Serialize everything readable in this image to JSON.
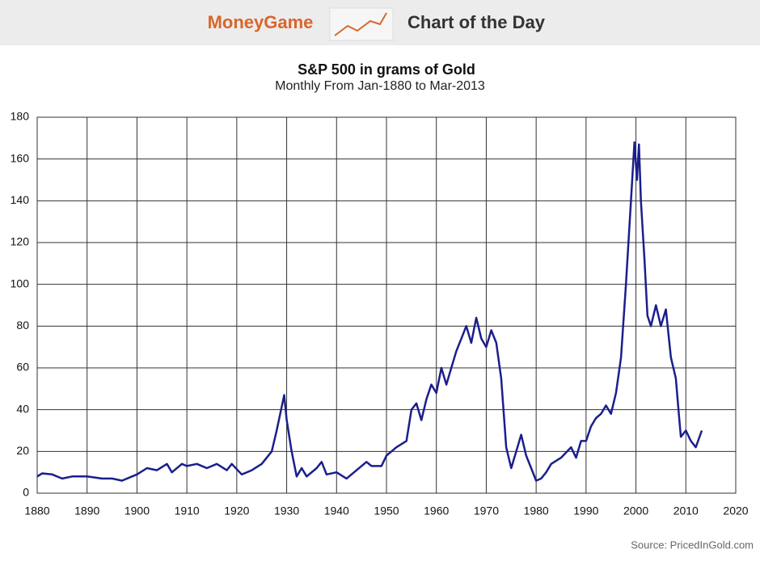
{
  "header": {
    "brand": "MoneyGame",
    "label": "Chart of the Day"
  },
  "chart_data": {
    "type": "line",
    "title": "S&P 500 in grams of Gold",
    "subtitle": "Monthly From Jan-1880 to Mar-2013",
    "source": "Source: PricedInGold.com",
    "x": [
      1880,
      1881,
      1883,
      1885,
      1887,
      1890,
      1893,
      1895,
      1897,
      1899,
      1900,
      1902,
      1904,
      1906,
      1907,
      1909,
      1910,
      1912,
      1914,
      1916,
      1918,
      1919,
      1921,
      1923,
      1925,
      1927,
      1928,
      1929.5,
      1930,
      1931,
      1932,
      1933,
      1934,
      1936,
      1937,
      1938,
      1940,
      1942,
      1944,
      1946,
      1947,
      1949,
      1950,
      1952,
      1954,
      1955,
      1956,
      1957,
      1958,
      1959,
      1960,
      1961,
      1962,
      1963,
      1964,
      1965,
      1966,
      1967,
      1968,
      1969,
      1970,
      1971,
      1972,
      1973,
      1974,
      1975,
      1976,
      1977,
      1978,
      1979,
      1980,
      1981,
      1982,
      1983,
      1985,
      1987,
      1988,
      1989,
      1990,
      1991,
      1992,
      1993,
      1994,
      1995,
      1996,
      1997,
      1998,
      1999,
      1999.7,
      2000.2,
      2000.6,
      2001,
      2001.7,
      2002.3,
      2003,
      2004,
      2005,
      2006,
      2007,
      2008,
      2008.6,
      2009,
      2010,
      2011,
      2012,
      2013.2
    ],
    "values": [
      8,
      9.5,
      9,
      7,
      8,
      8,
      7,
      7,
      6,
      8,
      9,
      12,
      11,
      14,
      10,
      14,
      13,
      14,
      12,
      14,
      11,
      14,
      9,
      11,
      14,
      20,
      30,
      47,
      35,
      20,
      8,
      12,
      8,
      12,
      15,
      9,
      10,
      7,
      11,
      15,
      13,
      13,
      18,
      22,
      25,
      40,
      43,
      35,
      45,
      52,
      48,
      60,
      52,
      60,
      68,
      74,
      80,
      72,
      84,
      74,
      70,
      78,
      72,
      55,
      22,
      12,
      20,
      28,
      18,
      12,
      6,
      7,
      10,
      14,
      17,
      22,
      17,
      25,
      25,
      32,
      36,
      38,
      42,
      38,
      48,
      65,
      100,
      140,
      168,
      150,
      167,
      140,
      112,
      85,
      80,
      90,
      80,
      88,
      65,
      55,
      38,
      27,
      30,
      25,
      22,
      30
    ],
    "color": "#1a1f8c",
    "xlim": [
      1880,
      2020
    ],
    "xticks": [
      1880,
      1890,
      1900,
      1910,
      1920,
      1930,
      1940,
      1950,
      1960,
      1970,
      1980,
      1990,
      2000,
      2010,
      2020
    ],
    "ylim": [
      0,
      180
    ],
    "yticks": [
      0,
      20,
      40,
      60,
      80,
      100,
      120,
      140,
      160,
      180
    ],
    "grid": true
  }
}
